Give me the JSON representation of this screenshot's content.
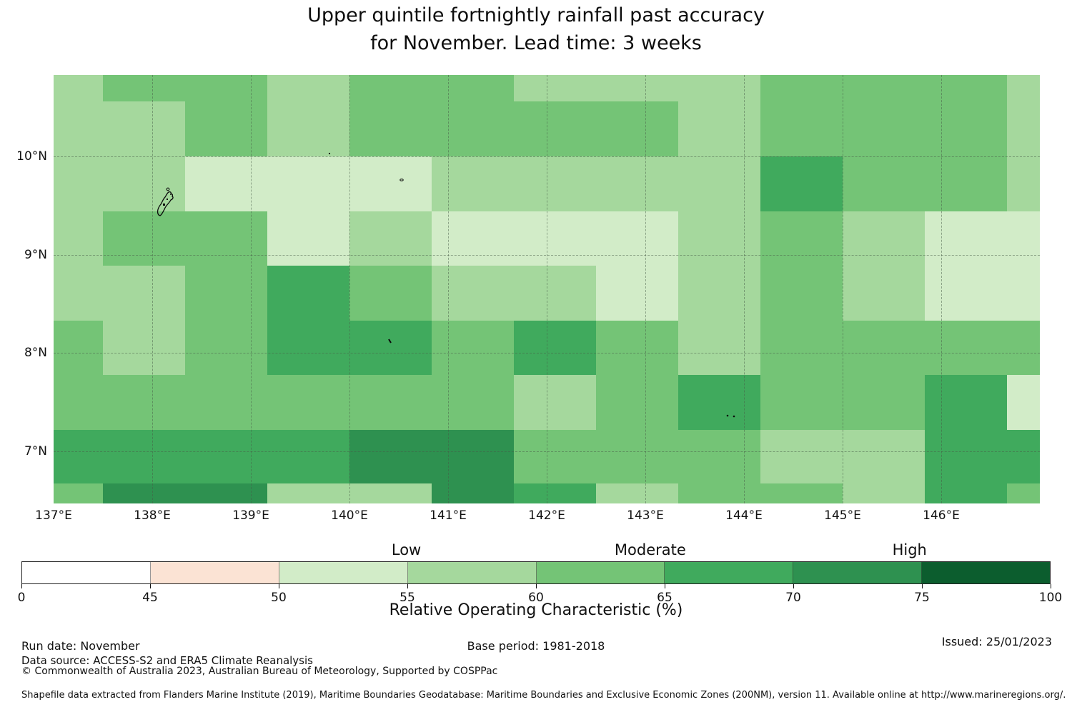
{
  "title": {
    "line1": "Upper quintile fortnightly rainfall past accuracy",
    "line2": "for November. Lead time: 3 weeks"
  },
  "colors": {
    "0-45": "#ffffff",
    "45-50": "#fbe3d4",
    "50-55": "#d2ecc8",
    "55-60": "#a5d89d",
    "60-65": "#74c476",
    "65-70": "#40aa5d",
    "70-75": "#2e9150",
    "75-100": "#0c5d2e"
  },
  "chart_data": {
    "type": "heatmap",
    "title": "Upper quintile fortnightly rainfall past accuracy for November. Lead time: 3 weeks",
    "value_label": "Relative Operating Characteristic (%)",
    "lon_range": [
      137.0,
      147.0
    ],
    "lat_range": [
      6.47,
      10.83
    ],
    "lon_edges": [
      137.0,
      137.5,
      138.33,
      139.17,
      140.0,
      140.83,
      141.67,
      142.5,
      143.33,
      144.17,
      145.0,
      145.83,
      146.67,
      147.0
    ],
    "lat_edges": [
      10.83,
      10.56,
      10.0,
      9.44,
      8.89,
      8.33,
      7.78,
      7.22,
      6.67,
      6.47
    ],
    "grid_on": true,
    "gridline_lons": [
      138,
      139,
      140,
      141,
      142,
      143,
      144,
      145,
      146
    ],
    "gridline_lats": [
      10,
      9,
      8,
      7
    ],
    "x_ticks": [
      {
        "label": "137°E",
        "lon": 137
      },
      {
        "label": "138°E",
        "lon": 138
      },
      {
        "label": "139°E",
        "lon": 139
      },
      {
        "label": "140°E",
        "lon": 140
      },
      {
        "label": "141°E",
        "lon": 141
      },
      {
        "label": "142°E",
        "lon": 142
      },
      {
        "label": "143°E",
        "lon": 143
      },
      {
        "label": "144°E",
        "lon": 144
      },
      {
        "label": "145°E",
        "lon": 145
      },
      {
        "label": "146°E",
        "lon": 146
      }
    ],
    "y_ticks": [
      {
        "label": "10°N",
        "lat": 10
      },
      {
        "label": "9°N",
        "lat": 9
      },
      {
        "label": "8°N",
        "lat": 8
      },
      {
        "label": "7°N",
        "lat": 7
      }
    ],
    "roc_bins_grid_rows_north_to_south": [
      [
        "55-60",
        "60-65",
        "60-65",
        "55-60",
        "60-65",
        "60-65",
        "55-60",
        "55-60",
        "55-60",
        "60-65",
        "60-65",
        "60-65",
        "55-60"
      ],
      [
        "55-60",
        "55-60",
        "60-65",
        "55-60",
        "60-65",
        "60-65",
        "60-65",
        "60-65",
        "55-60",
        "60-65",
        "60-65",
        "60-65",
        "55-60"
      ],
      [
        "55-60",
        "55-60",
        "50-55",
        "50-55",
        "50-55",
        "55-60",
        "55-60",
        "55-60",
        "55-60",
        "65-70",
        "60-65",
        "60-65",
        "55-60"
      ],
      [
        "55-60",
        "60-65",
        "60-65",
        "50-55",
        "55-60",
        "50-55",
        "50-55",
        "50-55",
        "55-60",
        "60-65",
        "55-60",
        "50-55",
        "50-55"
      ],
      [
        "55-60",
        "55-60",
        "60-65",
        "65-70",
        "60-65",
        "55-60",
        "55-60",
        "50-55",
        "55-60",
        "60-65",
        "55-60",
        "50-55",
        "50-55"
      ],
      [
        "60-65",
        "55-60",
        "60-65",
        "65-70",
        "65-70",
        "60-65",
        "65-70",
        "60-65",
        "55-60",
        "60-65",
        "60-65",
        "60-65",
        "60-65"
      ],
      [
        "60-65",
        "60-65",
        "60-65",
        "60-65",
        "60-65",
        "60-65",
        "55-60",
        "60-65",
        "65-70",
        "60-65",
        "60-65",
        "65-70",
        "50-55"
      ],
      [
        "65-70",
        "65-70",
        "65-70",
        "65-70",
        "70-75",
        "70-75",
        "60-65",
        "60-65",
        "60-65",
        "55-60",
        "55-60",
        "65-70",
        "65-70"
      ],
      [
        "60-65",
        "70-75",
        "70-75",
        "55-60",
        "55-60",
        "70-75",
        "65-70",
        "55-60",
        "60-65",
        "60-65",
        "55-60",
        "65-70",
        "60-65"
      ]
    ],
    "colorbar": {
      "title": "Relative Operating Characteristic (%)",
      "segments": [
        "0-45",
        "45-50",
        "50-55",
        "55-60",
        "60-65",
        "65-70",
        "70-75",
        "75-100"
      ],
      "tick_labels": [
        "0",
        "45",
        "50",
        "55",
        "60",
        "65",
        "70",
        "75",
        "100"
      ],
      "class_labels": [
        {
          "label": "Low",
          "pct": 37.4
        },
        {
          "label": "Moderate",
          "pct": 61.1
        },
        {
          "label": "High",
          "pct": 86.3
        }
      ],
      "legend_position": "bottom"
    }
  },
  "footer": {
    "run_date": "Run date: November",
    "base_period": "Base period: 1981-2018",
    "issued": "Issued: 25/01/2023",
    "data_source": "Data source: ACCESS-S2 and ERA5 Climate Reanalysis",
    "copyright": "© Commonwealth of Australia 2023, Australian Bureau of Meteorology, Supported by COSPPac",
    "shapefile_note": "Shapefile data extracted from Flanders Marine Institute (2019), Maritime Boundaries Geodatabase: Maritime Boundaries and Exclusive Economic Zones (200NM), version 11. Available online at http://www.marineregions.org/."
  }
}
